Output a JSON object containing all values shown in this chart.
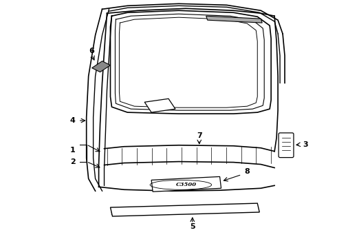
{
  "background_color": "#ffffff",
  "line_color": "#000000",
  "lw": 1.0,
  "label_fontsize": 8
}
